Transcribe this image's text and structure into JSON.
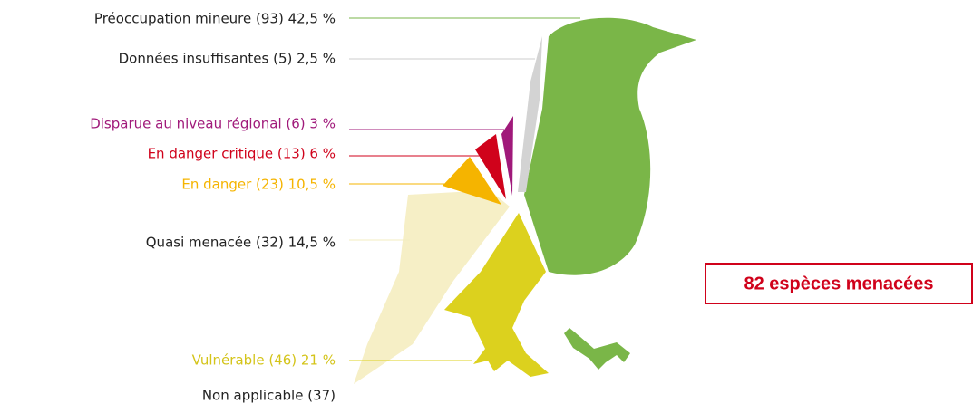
{
  "legend": {
    "items": [
      {
        "label": "Préoccupation mineure (93) 42,5 %"
      },
      {
        "label": "Données insuffisantes (5) 2,5 %"
      },
      {
        "label": "Disparue au niveau régional (6) 3 %"
      },
      {
        "label": "En danger critique (13) 6 %"
      },
      {
        "label": "En danger (23) 10,5 %"
      },
      {
        "label": "Quasi menacée (32)  14,5 %"
      },
      {
        "label": "Vulnérable (46) 21 %"
      },
      {
        "label": "Non applicable (37)"
      }
    ]
  },
  "callout": {
    "text": "82 espèces menacées"
  }
}
